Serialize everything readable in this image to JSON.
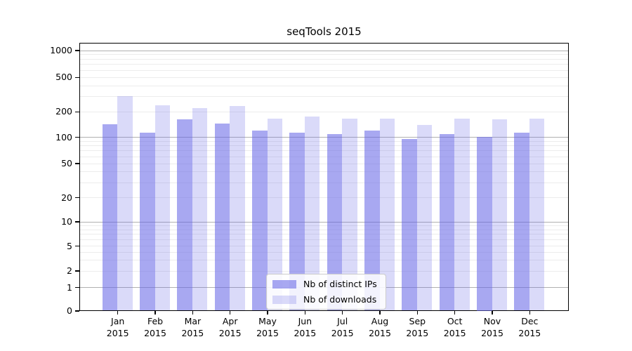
{
  "chart_data": {
    "type": "bar",
    "title": "seqTools 2015",
    "categories": [
      "Jan",
      "Feb",
      "Mar",
      "Apr",
      "May",
      "Jun",
      "Jul",
      "Aug",
      "Sep",
      "Oct",
      "Nov",
      "Dec"
    ],
    "category_year": "2015",
    "series": [
      {
        "name": "Nb of distinct IPs",
        "color": "rgba(100,100,230,0.56)",
        "hex_on_white": "#a8a8f0",
        "values": [
          142,
          112,
          161,
          144,
          118,
          113,
          108,
          118,
          95,
          108,
          100,
          112
        ]
      },
      {
        "name": "Nb of downloads",
        "color": "rgba(100,100,230,0.24)",
        "hex_on_white": "#d9d9f8",
        "values": [
          300,
          235,
          217,
          233,
          166,
          174,
          163,
          165,
          139,
          163,
          161,
          166
        ]
      }
    ],
    "xlabel": "",
    "ylabel": "",
    "yscale": "symlog",
    "yticks": [
      0,
      1,
      2,
      5,
      10,
      20,
      50,
      100,
      200,
      500,
      1000
    ],
    "ylim": [
      0,
      1230
    ],
    "grid": true,
    "grid_major_color": "#b0b0b0",
    "grid_minor_color": "#ececec",
    "legend_position": "lower center",
    "axes_color": "#000000",
    "background_color": "#ffffff"
  }
}
